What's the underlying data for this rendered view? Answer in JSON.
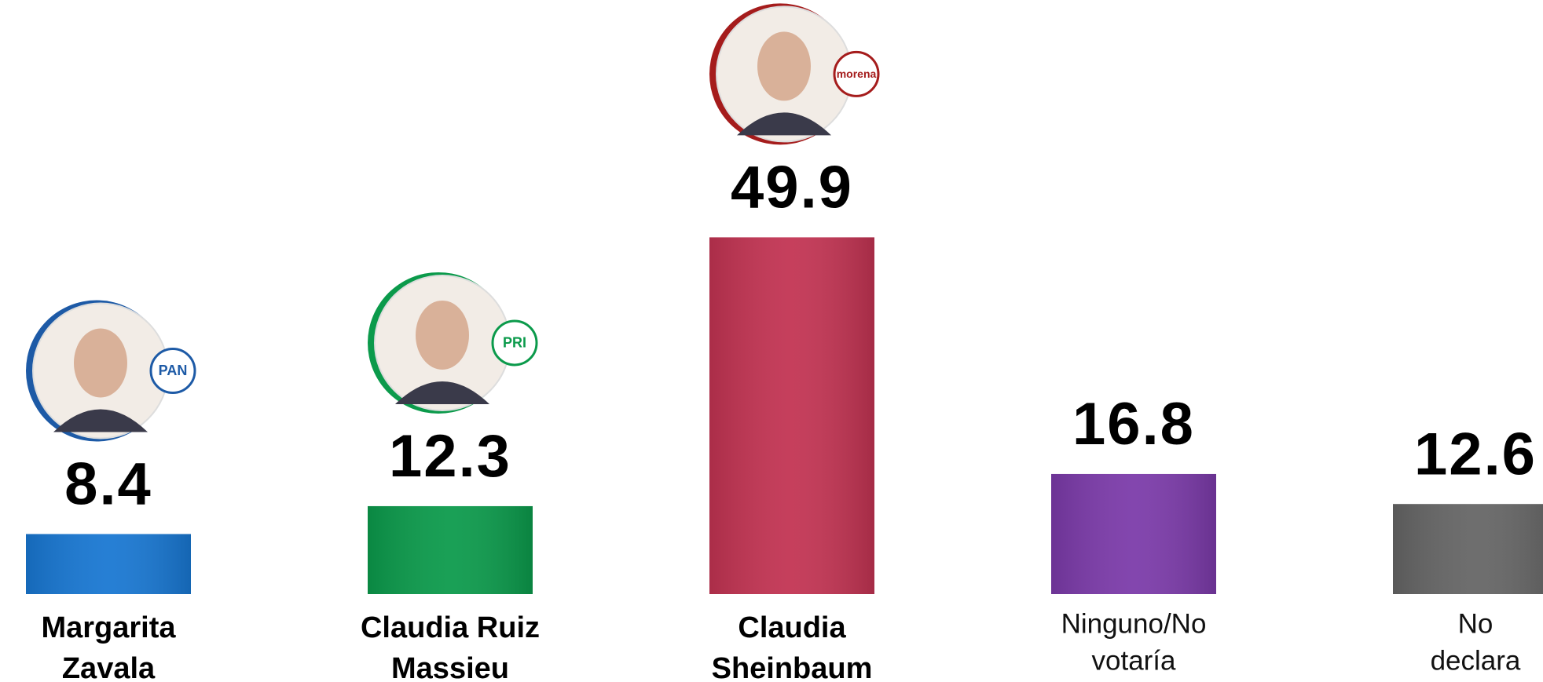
{
  "chart_data": {
    "type": "bar",
    "categories": [
      [
        "Margarita",
        "Zavala"
      ],
      [
        "Claudia Ruiz",
        "Massieu"
      ],
      [
        "Claudia",
        "Sheinbaum"
      ],
      [
        "Ninguno/No",
        "votaría"
      ],
      [
        "No",
        "declara"
      ]
    ],
    "values": [
      8.4,
      12.3,
      49.9,
      16.8,
      12.6
    ],
    "colors": [
      "#1877d2",
      "#0b9a4b",
      "#c23352",
      "#7b3aa9",
      "#656565"
    ],
    "parties": [
      "PAN",
      "PRI",
      "morena",
      null,
      null
    ],
    "party_colors": [
      "#1d5aa6",
      "#0b9a4b",
      "#a51c1c",
      null,
      null
    ]
  }
}
